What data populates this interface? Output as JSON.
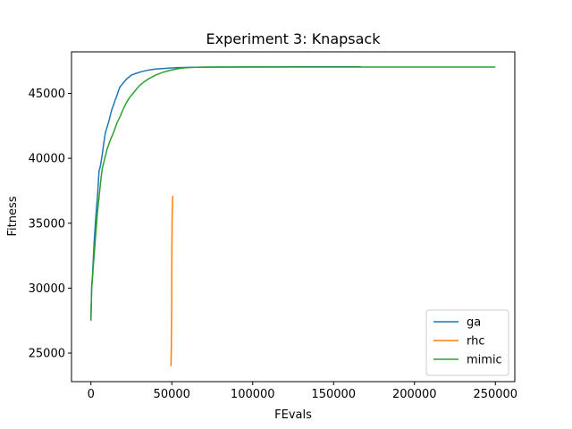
{
  "chart_data": {
    "type": "line",
    "title": "Experiment 3: Knapsack",
    "xlabel": "FEvals",
    "ylabel": "Fitness",
    "xlim": [
      -12000,
      262000
    ],
    "ylim": [
      22800,
      48200
    ],
    "xticks": [
      0,
      50000,
      100000,
      150000,
      200000,
      250000
    ],
    "xtick_labels": [
      "0",
      "50000",
      "100000",
      "150000",
      "200000",
      "250000"
    ],
    "yticks": [
      25000,
      30000,
      35000,
      40000,
      45000
    ],
    "ytick_labels": [
      "25000",
      "30000",
      "35000",
      "40000",
      "45000"
    ],
    "grid": false,
    "legend_position": "lower right",
    "series": [
      {
        "name": "ga",
        "color": "#1f77b4",
        "x": [
          0,
          500,
          1000,
          2000,
          3000,
          4000,
          5000,
          6000,
          7000,
          8000,
          9000,
          10000,
          11000,
          12000,
          13000,
          14000,
          15000,
          16000,
          17000,
          18000,
          20000,
          22000,
          25000,
          28000,
          32000,
          36000,
          40000,
          45000,
          50000,
          55000,
          60000,
          65000,
          70000,
          80000,
          100000,
          130000,
          167000
        ],
        "y": [
          27500,
          30200,
          31000,
          33500,
          35500,
          37000,
          39000,
          39500,
          40300,
          41200,
          42000,
          42400,
          42800,
          43300,
          43800,
          44100,
          44500,
          44800,
          45200,
          45500,
          45800,
          46100,
          46400,
          46550,
          46700,
          46800,
          46870,
          46920,
          46960,
          46990,
          47000,
          47010,
          47020,
          47030,
          47040,
          47045,
          47050
        ]
      },
      {
        "name": "rhc",
        "color": "#ff7f0e",
        "x": [
          49500,
          49700,
          49900,
          50000,
          50200,
          50500,
          51000
        ],
        "y": [
          24000,
          25500,
          28500,
          32000,
          35500,
          37000,
          37100
        ]
      },
      {
        "name": "mimic",
        "color": "#2ca02c",
        "x": [
          0,
          500,
          1000,
          2000,
          3000,
          4000,
          5000,
          6000,
          7000,
          8000,
          9000,
          10000,
          12000,
          14000,
          16000,
          18000,
          20000,
          22000,
          24000,
          26000,
          28000,
          30000,
          33000,
          36000,
          40000,
          44000,
          48000,
          52000,
          56000,
          60000,
          65000,
          70000,
          80000,
          100000,
          150000,
          200000,
          250000
        ],
        "y": [
          27500,
          30000,
          30800,
          32500,
          34200,
          35800,
          37000,
          38200,
          39200,
          39700,
          40200,
          40700,
          41400,
          42000,
          42700,
          43200,
          43800,
          44300,
          44700,
          45000,
          45300,
          45600,
          45900,
          46150,
          46400,
          46600,
          46750,
          46860,
          46940,
          46990,
          47010,
          47020,
          47030,
          47030,
          47030,
          47030,
          47030
        ]
      }
    ]
  }
}
